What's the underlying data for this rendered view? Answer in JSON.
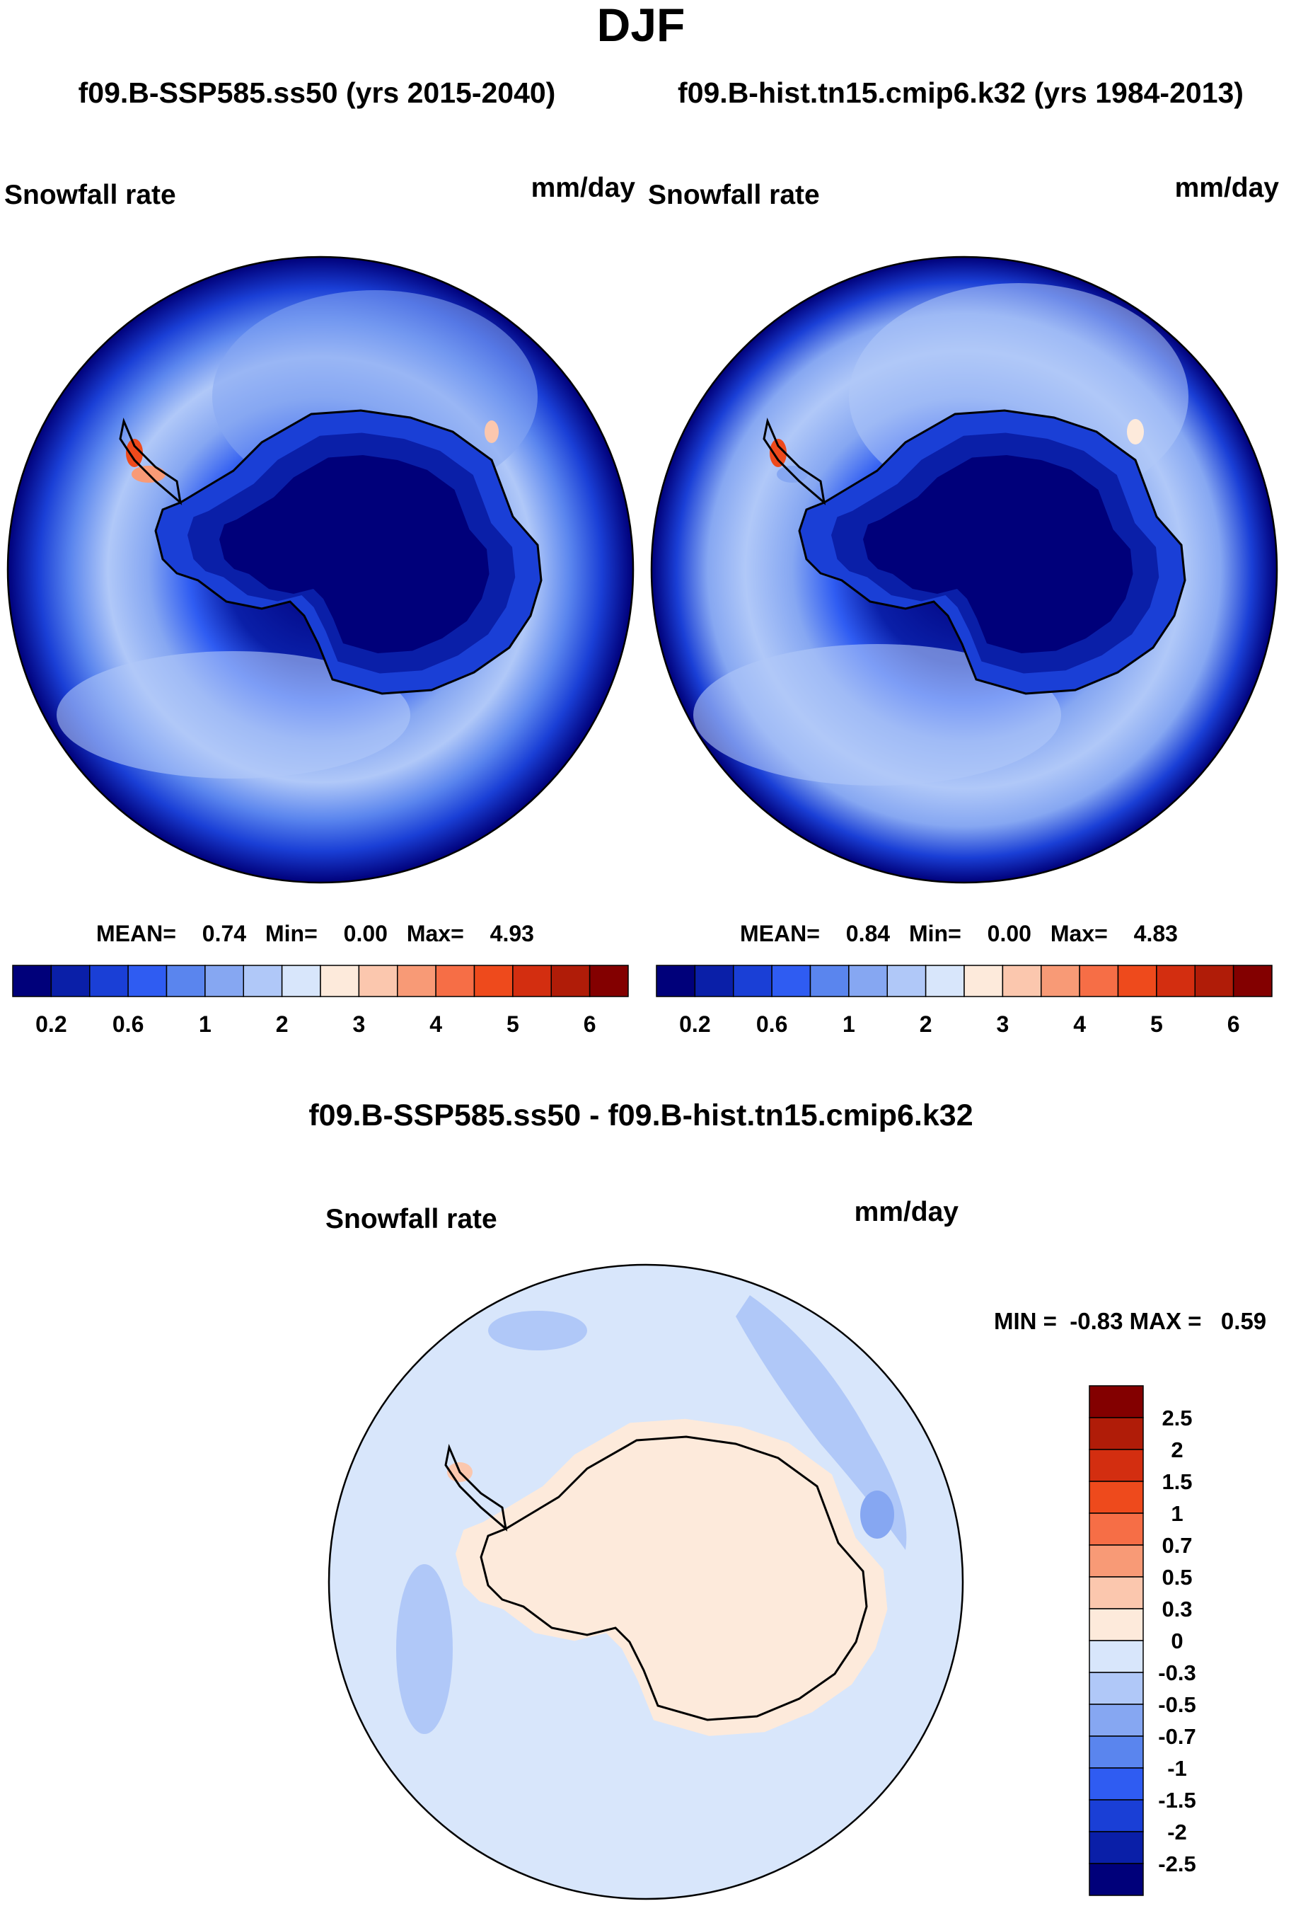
{
  "title": "DJF",
  "subtitle": {
    "left": "f09.B-SSP585.ss50 (yrs 2015-2040)",
    "right": "f09.B-hist.tn15.cmip6.k32 (yrs 1984-2013)"
  },
  "panels": [
    {
      "var_label": "Snowfall rate",
      "units": "mm/day",
      "stats": {
        "mean_label": "MEAN=",
        "mean": "0.74",
        "min_label": "Min=",
        "min": "0.00",
        "max_label": "Max=",
        "max": "4.93"
      }
    },
    {
      "var_label": "Snowfall rate",
      "units": "mm/day",
      "stats": {
        "mean_label": "MEAN=",
        "mean": "0.84",
        "min_label": "Min=",
        "min": "0.00",
        "max_label": "Max=",
        "max": "4.83"
      }
    }
  ],
  "diff_panel": {
    "title": "f09.B-SSP585.ss50 - f09.B-hist.tn15.cmip6.k32",
    "var_label": "Snowfall rate",
    "units": "mm/day",
    "minmax_text": "MIN =  -0.83 MAX =   0.59"
  },
  "chart_data": [
    {
      "type": "heatmap",
      "projection": "south-polar-stereographic",
      "title": "Snowfall rate (f09.B-SSP585.ss50, yrs 2015-2040)",
      "units": "mm/day",
      "mean": 0.74,
      "min": 0.0,
      "max": 4.93,
      "colorbar": {
        "levels": [
          0.2,
          0.4,
          0.6,
          0.8,
          1,
          1.5,
          2,
          2.5,
          3,
          3.5,
          4,
          4.5,
          5,
          5.5,
          6
        ],
        "tick_labels": [
          "0.2",
          "0.6",
          "1",
          "2",
          "3",
          "4",
          "5",
          "6"
        ],
        "colors": [
          "#00007a",
          "#0a1fa8",
          "#1a3fd6",
          "#2f5cf2",
          "#5a85ee",
          "#86a7f2",
          "#b0c8f8",
          "#d8e6fb",
          "#fdeadb",
          "#fbc7ae",
          "#f89a76",
          "#f66e46",
          "#ee4a1c",
          "#d32e10",
          "#b01c08",
          "#830000"
        ]
      }
    },
    {
      "type": "heatmap",
      "projection": "south-polar-stereographic",
      "title": "Snowfall rate (f09.B-hist.tn15.cmip6.k32, yrs 1984-2013)",
      "units": "mm/day",
      "mean": 0.84,
      "min": 0.0,
      "max": 4.83,
      "colorbar": {
        "levels": [
          0.2,
          0.4,
          0.6,
          0.8,
          1,
          1.5,
          2,
          2.5,
          3,
          3.5,
          4,
          4.5,
          5,
          5.5,
          6
        ],
        "tick_labels": [
          "0.2",
          "0.6",
          "1",
          "2",
          "3",
          "4",
          "5",
          "6"
        ],
        "colors": [
          "#00007a",
          "#0a1fa8",
          "#1a3fd6",
          "#2f5cf2",
          "#5a85ee",
          "#86a7f2",
          "#b0c8f8",
          "#d8e6fb",
          "#fdeadb",
          "#fbc7ae",
          "#f89a76",
          "#f66e46",
          "#ee4a1c",
          "#d32e10",
          "#b01c08",
          "#830000"
        ]
      }
    },
    {
      "type": "heatmap",
      "projection": "south-polar-stereographic",
      "title": "Snowfall rate difference (f09.B-SSP585.ss50 - f09.B-hist.tn15.cmip6.k32)",
      "units": "mm/day",
      "min": -0.83,
      "max": 0.59,
      "colorbar": {
        "orientation": "vertical",
        "levels": [
          -2.5,
          -2,
          -1.5,
          -1,
          -0.7,
          -0.5,
          -0.3,
          0,
          0.3,
          0.5,
          0.7,
          1,
          1.5,
          2,
          2.5
        ],
        "tick_labels": [
          "2.5",
          "2",
          "1.5",
          "1",
          "0.7",
          "0.5",
          "0.3",
          "0",
          "-0.3",
          "-0.5",
          "-0.7",
          "-1",
          "-1.5",
          "-2",
          "-2.5"
        ],
        "colors": [
          "#00007a",
          "#0a1fa8",
          "#1a3fd6",
          "#2f5cf2",
          "#5a85ee",
          "#86a7f2",
          "#b0c8f8",
          "#d8e6fb",
          "#fdeadb",
          "#fbc7ae",
          "#f89a76",
          "#f66e46",
          "#ee4a1c",
          "#d32e10",
          "#b01c08",
          "#830000"
        ]
      }
    }
  ]
}
